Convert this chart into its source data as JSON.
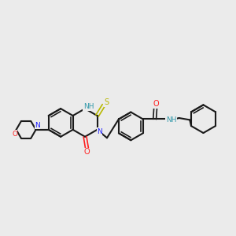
{
  "bg_color": "#ebebeb",
  "bond_color": "#1a1a1a",
  "N_color": "#2020ff",
  "O_color": "#ff2020",
  "S_color": "#b8b800",
  "NH_color": "#3399aa",
  "xlim": [
    0,
    10
  ],
  "ylim": [
    2.5,
    8.5
  ],
  "figsize": [
    3.0,
    3.0
  ],
  "dpi": 100
}
